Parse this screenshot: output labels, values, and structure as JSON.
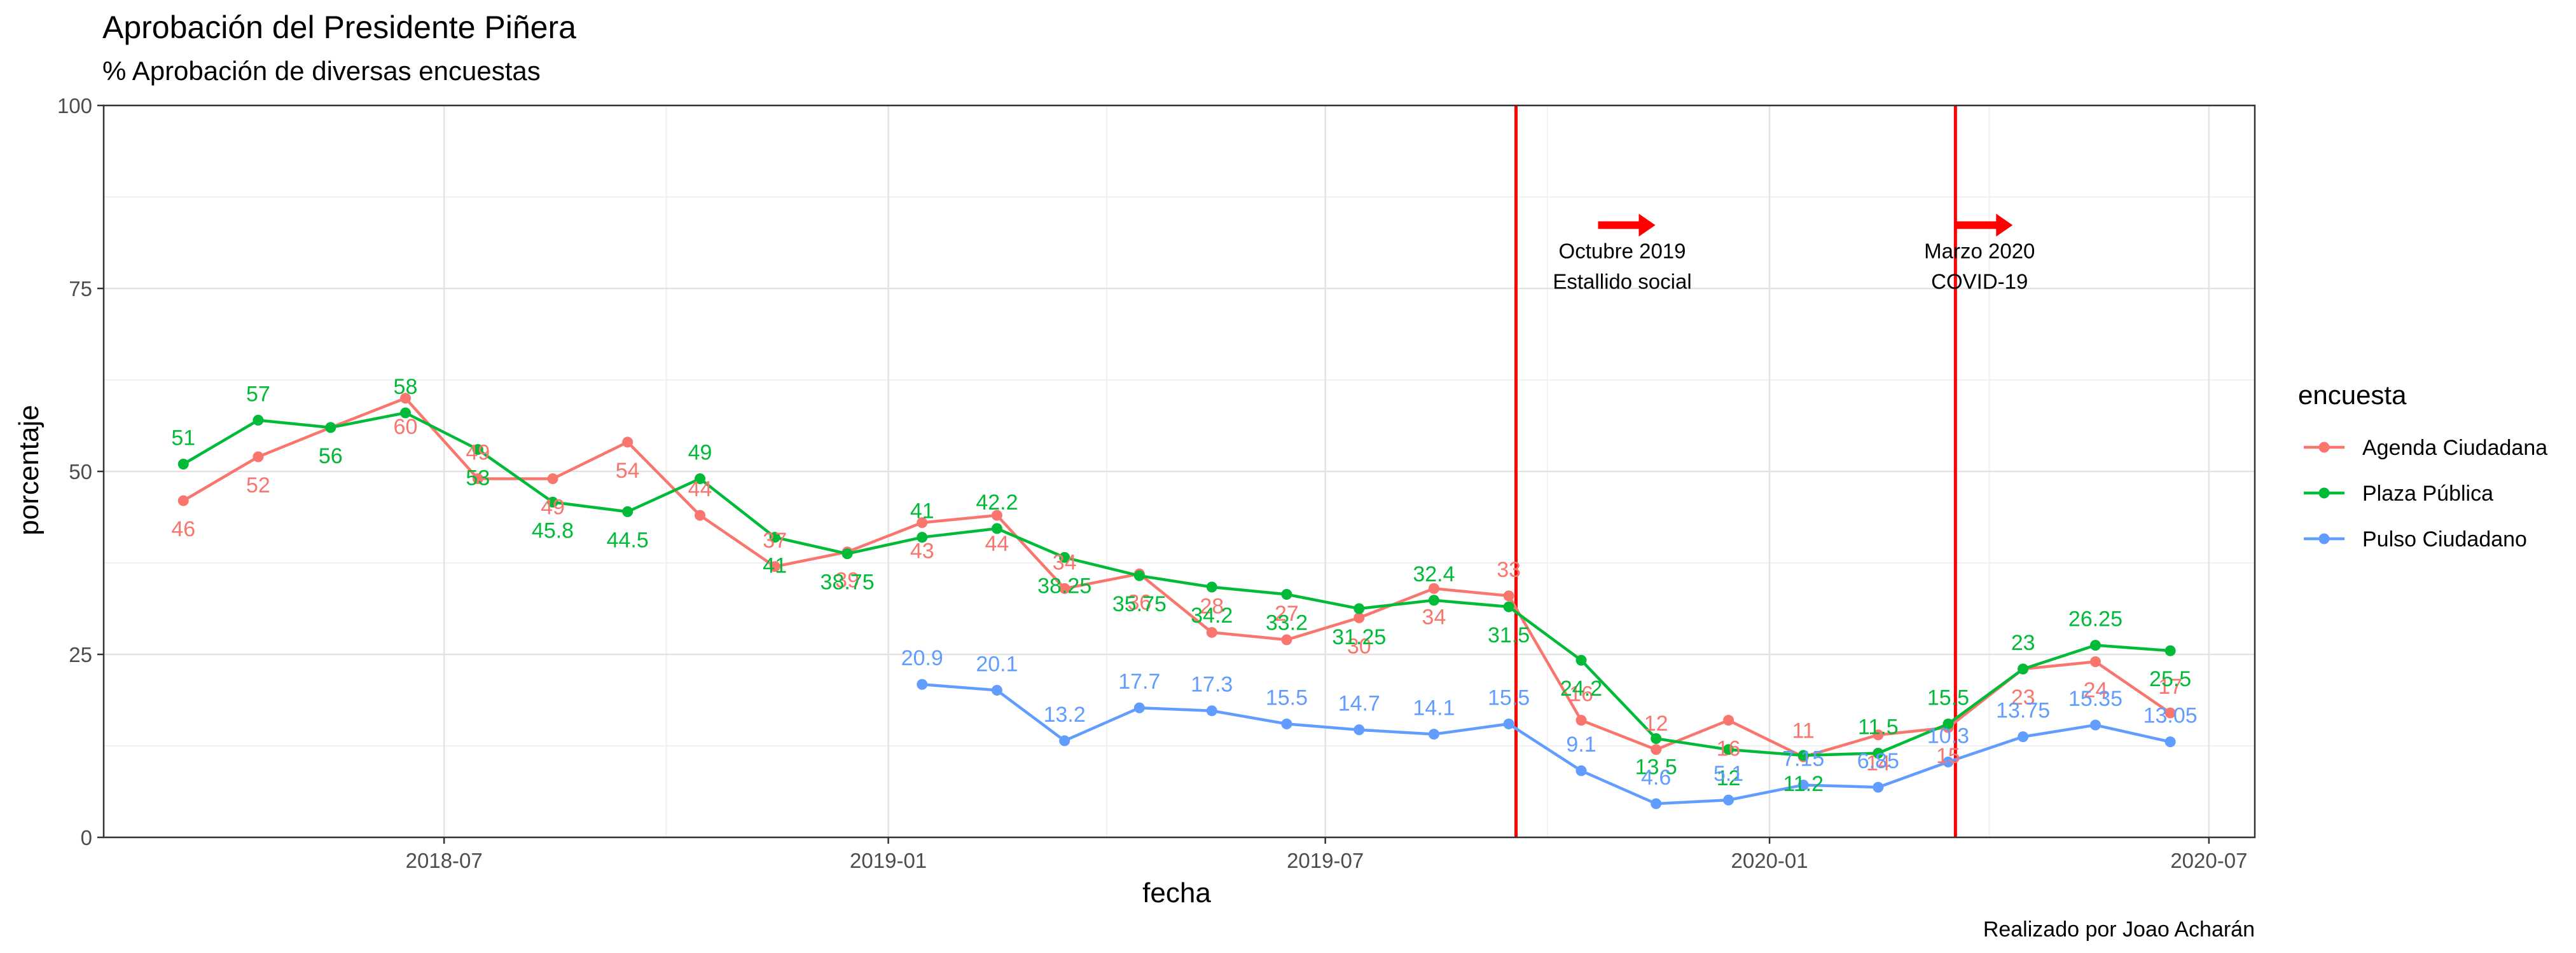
{
  "chart_data": {
    "type": "line",
    "title": "Aprobación del Presidente Piñera",
    "subtitle": "% Aprobación de diversas encuestas",
    "xlabel": "fecha",
    "ylabel": "porcentaje",
    "caption": "Realizado por Joao Acharán",
    "ylim": [
      0,
      100
    ],
    "xlim": [
      "2018-02-10",
      "2020-07-20"
    ],
    "yticks": [
      0,
      25,
      50,
      75,
      100
    ],
    "xticks": [
      {
        "date": "2018-07-01",
        "label": "2018-07"
      },
      {
        "date": "2019-01-01",
        "label": "2019-01"
      },
      {
        "date": "2019-07-01",
        "label": "2019-07"
      },
      {
        "date": "2020-01-01",
        "label": "2020-01"
      },
      {
        "date": "2020-07-01",
        "label": "2020-07"
      }
    ],
    "grid": true,
    "legend": {
      "title": "encuesta",
      "placement": "right"
    },
    "series": [
      {
        "name": "Agenda Ciudadana",
        "color": "#F8766D",
        "points": [
          {
            "x": "2018-03-15",
            "y": 46,
            "label": "46"
          },
          {
            "x": "2018-04-15",
            "y": 52,
            "label": "52"
          },
          {
            "x": "2018-05-15",
            "y": 56,
            "label": "56"
          },
          {
            "x": "2018-06-15",
            "y": 60,
            "label": "60"
          },
          {
            "x": "2018-07-15",
            "y": 49,
            "label": "49"
          },
          {
            "x": "2018-08-15",
            "y": 49,
            "label": "49"
          },
          {
            "x": "2018-09-15",
            "y": 54,
            "label": "54"
          },
          {
            "x": "2018-10-15",
            "y": 44,
            "label": "44"
          },
          {
            "x": "2018-11-15",
            "y": 37,
            "label": "37"
          },
          {
            "x": "2018-12-15",
            "y": 39,
            "label": "39"
          },
          {
            "x": "2019-01-15",
            "y": 43,
            "label": "43"
          },
          {
            "x": "2019-02-15",
            "y": 44,
            "label": "44"
          },
          {
            "x": "2019-03-15",
            "y": 34,
            "label": "34"
          },
          {
            "x": "2019-04-15",
            "y": 36,
            "label": "36"
          },
          {
            "x": "2019-05-15",
            "y": 28,
            "label": "28"
          },
          {
            "x": "2019-06-15",
            "y": 27,
            "label": "27"
          },
          {
            "x": "2019-07-15",
            "y": 30,
            "label": "30"
          },
          {
            "x": "2019-08-15",
            "y": 34,
            "label": "34"
          },
          {
            "x": "2019-09-15",
            "y": 33,
            "label": "33"
          },
          {
            "x": "2019-10-15",
            "y": 16,
            "label": "16"
          },
          {
            "x": "2019-11-15",
            "y": 12,
            "label": "12"
          },
          {
            "x": "2019-12-15",
            "y": 16,
            "label": "16"
          },
          {
            "x": "2020-01-15",
            "y": 11,
            "label": "11"
          },
          {
            "x": "2020-02-15",
            "y": 14,
            "label": "14"
          },
          {
            "x": "2020-03-15",
            "y": 15,
            "label": "15"
          },
          {
            "x": "2020-04-15",
            "y": 23,
            "label": "23"
          },
          {
            "x": "2020-05-15",
            "y": 24,
            "label": "24"
          },
          {
            "x": "2020-06-15",
            "y": 17,
            "label": "17"
          }
        ]
      },
      {
        "name": "Plaza Pública",
        "color": "#00BA38",
        "points": [
          {
            "x": "2018-03-15",
            "y": 51,
            "label": "51"
          },
          {
            "x": "2018-04-15",
            "y": 57,
            "label": "57"
          },
          {
            "x": "2018-05-15",
            "y": 56,
            "label": "56"
          },
          {
            "x": "2018-06-15",
            "y": 58,
            "label": "58"
          },
          {
            "x": "2018-07-15",
            "y": 53,
            "label": "53"
          },
          {
            "x": "2018-08-15",
            "y": 45.8,
            "label": "45.8"
          },
          {
            "x": "2018-09-15",
            "y": 44.5,
            "label": "44.5"
          },
          {
            "x": "2018-10-15",
            "y": 49,
            "label": "49"
          },
          {
            "x": "2018-11-15",
            "y": 41,
            "label": "41"
          },
          {
            "x": "2018-12-15",
            "y": 38.75,
            "label": "38.75"
          },
          {
            "x": "2019-01-15",
            "y": 41,
            "label": "41"
          },
          {
            "x": "2019-02-15",
            "y": 42.2,
            "label": "42.2"
          },
          {
            "x": "2019-03-15",
            "y": 38.25,
            "label": "38.25"
          },
          {
            "x": "2019-04-15",
            "y": 35.75,
            "label": "35.75"
          },
          {
            "x": "2019-05-15",
            "y": 34.2,
            "label": "34.2"
          },
          {
            "x": "2019-06-15",
            "y": 33.2,
            "label": "33.2"
          },
          {
            "x": "2019-07-15",
            "y": 31.25,
            "label": "31.25"
          },
          {
            "x": "2019-08-15",
            "y": 32.4,
            "label": "32.4"
          },
          {
            "x": "2019-09-15",
            "y": 31.5,
            "label": "31.5"
          },
          {
            "x": "2019-10-15",
            "y": 24.2,
            "label": "24.2"
          },
          {
            "x": "2019-11-15",
            "y": 13.5,
            "label": "13.5"
          },
          {
            "x": "2019-12-15",
            "y": 12,
            "label": "12"
          },
          {
            "x": "2020-01-15",
            "y": 11.2,
            "label": "11.2"
          },
          {
            "x": "2020-02-15",
            "y": 11.5,
            "label": "11.5"
          },
          {
            "x": "2020-03-15",
            "y": 15.5,
            "label": "15.5"
          },
          {
            "x": "2020-04-15",
            "y": 23,
            "label": "23"
          },
          {
            "x": "2020-05-15",
            "y": 26.25,
            "label": "26.25"
          },
          {
            "x": "2020-06-15",
            "y": 25.5,
            "label": "25.5"
          }
        ]
      },
      {
        "name": "Pulso Ciudadano",
        "color": "#619CFF",
        "points": [
          {
            "x": "2019-01-15",
            "y": 20.9,
            "label": "20.9"
          },
          {
            "x": "2019-02-15",
            "y": 20.1,
            "label": "20.1"
          },
          {
            "x": "2019-03-15",
            "y": 13.2,
            "label": "13.2"
          },
          {
            "x": "2019-04-15",
            "y": 17.7,
            "label": "17.7"
          },
          {
            "x": "2019-05-15",
            "y": 17.3,
            "label": "17.3"
          },
          {
            "x": "2019-06-15",
            "y": 15.5,
            "label": "15.5"
          },
          {
            "x": "2019-07-15",
            "y": 14.7,
            "label": "14.7"
          },
          {
            "x": "2019-08-15",
            "y": 14.1,
            "label": "14.1"
          },
          {
            "x": "2019-09-15",
            "y": 15.5,
            "label": "15.5"
          },
          {
            "x": "2019-10-15",
            "y": 9.1,
            "label": "9.1"
          },
          {
            "x": "2019-11-15",
            "y": 4.6,
            "label": "4.6"
          },
          {
            "x": "2019-12-15",
            "y": 5.1,
            "label": "5.1"
          },
          {
            "x": "2020-01-15",
            "y": 7.15,
            "label": "7.15"
          },
          {
            "x": "2020-02-15",
            "y": 6.85,
            "label": "6.85"
          },
          {
            "x": "2020-03-15",
            "y": 10.3,
            "label": "10.3"
          },
          {
            "x": "2020-04-15",
            "y": 13.75,
            "label": "13.75"
          },
          {
            "x": "2020-05-15",
            "y": 15.35,
            "label": "15.35"
          },
          {
            "x": "2020-06-15",
            "y": 13.05,
            "label": "13.05"
          }
        ]
      }
    ],
    "vlines": [
      {
        "x": "2019-09-18",
        "color": "#FF0000"
      },
      {
        "x": "2020-03-18",
        "color": "#FF0000"
      }
    ],
    "annotations": [
      {
        "x": "2019-11-01",
        "y": 80,
        "lines": [
          "Octubre 2019",
          "Estallido social"
        ],
        "arrow": "right",
        "arrow_color": "#FF0000"
      },
      {
        "x": "2020-03-28",
        "y": 80,
        "lines": [
          "Marzo 2020",
          "COVID-19"
        ],
        "arrow": "right",
        "arrow_color": "#FF0000"
      }
    ]
  }
}
